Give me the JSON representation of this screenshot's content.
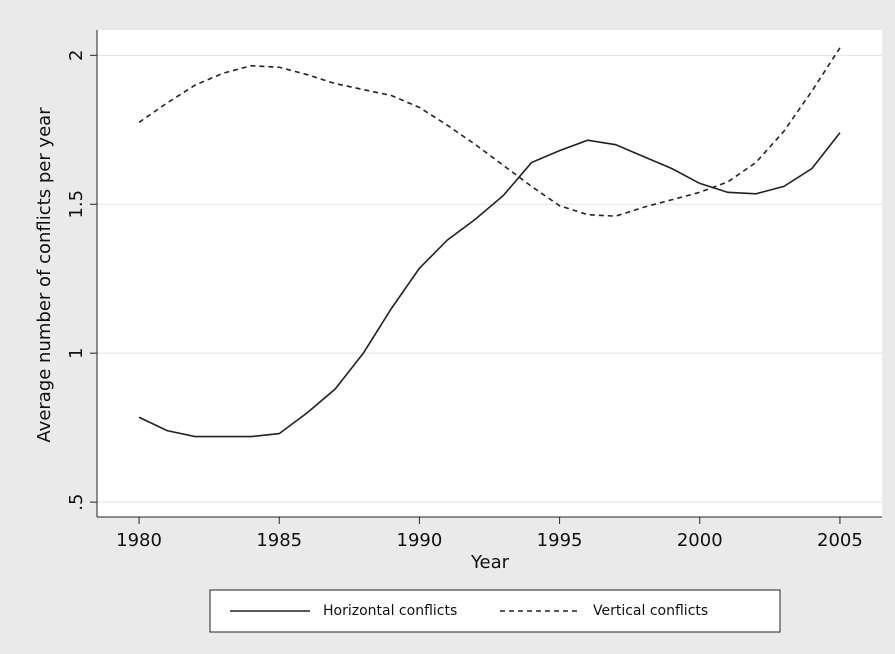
{
  "chart_data": {
    "type": "line",
    "xlabel": "Year",
    "ylabel": "Average number of conflicts per year",
    "x": [
      1980,
      1981,
      1982,
      1983,
      1984,
      1985,
      1986,
      1987,
      1988,
      1989,
      1990,
      1991,
      1992,
      1993,
      1994,
      1995,
      1996,
      1997,
      1998,
      1999,
      2000,
      2001,
      2002,
      2003,
      2004,
      2005
    ],
    "series": [
      {
        "name": "Horizontal conflicts",
        "color": "#222222",
        "dash": "solid",
        "values": [
          0.785,
          0.74,
          0.72,
          0.72,
          0.72,
          0.73,
          0.8,
          0.88,
          1.0,
          1.15,
          1.285,
          1.38,
          1.45,
          1.53,
          1.64,
          1.68,
          1.715,
          1.7,
          1.66,
          1.62,
          1.57,
          1.54,
          1.535,
          1.56,
          1.62,
          1.74
        ]
      },
      {
        "name": "Vertical conflicts",
        "color": "#222222",
        "dash": "dashed",
        "values": [
          1.775,
          1.84,
          1.9,
          1.94,
          1.965,
          1.96,
          1.935,
          1.905,
          1.885,
          1.865,
          1.825,
          1.765,
          1.7,
          1.63,
          1.56,
          1.495,
          1.465,
          1.46,
          1.49,
          1.515,
          1.54,
          1.575,
          1.64,
          1.745,
          1.88,
          2.025
        ]
      }
    ],
    "xlim": [
      1978.5,
      2006.5
    ],
    "xticks": [
      1980,
      1985,
      1990,
      1995,
      2000,
      2005
    ],
    "ylim": [
      0.45,
      2.085
    ],
    "yticks": [
      {
        "value": 0.5,
        "label": ".5"
      },
      1,
      1.5,
      2
    ],
    "grid": true,
    "legend": "bottom"
  }
}
